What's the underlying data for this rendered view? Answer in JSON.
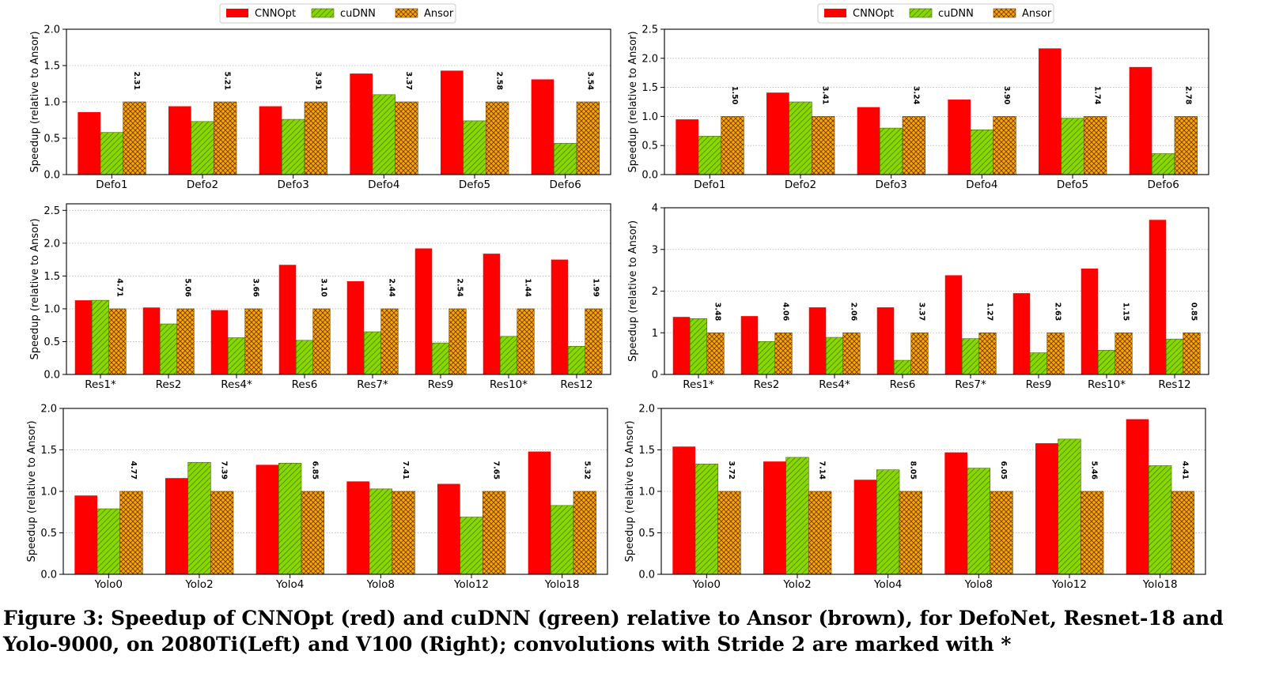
{
  "legend": {
    "items": [
      {
        "label": "CNNOpt",
        "color": "#ff0000",
        "pattern": "solid"
      },
      {
        "label": "cuDNN",
        "color": "#7fd000",
        "pattern": "diagonal-hatch"
      },
      {
        "label": "Ansor",
        "color": "#ffa500",
        "pattern": "cross-hatch"
      }
    ]
  },
  "caption": "Figure 3: Speedup of CNNOpt (red) and cuDNN (green) relative to Ansor (brown), for DefoNet, Resnet-18 and Yolo-9000, on 2080Ti(Left) and V100 (Right); convolutions with Stride 2 are marked with *",
  "chart_data": [
    {
      "type": "bar",
      "panel": "top-left",
      "ylabel": "Speedup (relative to Ansor)",
      "ylim": [
        0,
        2.0
      ],
      "yticks": [
        "0.0",
        "0.5",
        "1.0",
        "1.5",
        "2.0"
      ],
      "categories": [
        "Defo1",
        "Defo2",
        "Defo3",
        "Defo4",
        "Defo5",
        "Defo6"
      ],
      "series": [
        {
          "name": "CNNOpt",
          "values": [
            0.86,
            0.94,
            0.94,
            1.39,
            1.43,
            1.31
          ]
        },
        {
          "name": "cuDNN",
          "values": [
            0.58,
            0.73,
            0.76,
            1.1,
            0.74,
            0.43
          ]
        },
        {
          "name": "Ansor",
          "values": [
            1.0,
            1.0,
            1.0,
            1.0,
            1.0,
            1.0
          ]
        }
      ],
      "annotations": [
        "2.31",
        "5.21",
        "3.91",
        "3.37",
        "2.58",
        "3.54"
      ],
      "grid": "horizontal-dotted"
    },
    {
      "type": "bar",
      "panel": "top-right",
      "ylabel": "Speedup (relative to Ansor)",
      "ylim": [
        0,
        2.5
      ],
      "yticks": [
        "0.0",
        "0.5",
        "1.0",
        "1.5",
        "2.0",
        "2.5"
      ],
      "categories": [
        "Defo1",
        "Defo2",
        "Defo3",
        "Defo4",
        "Defo5",
        "Defo6"
      ],
      "series": [
        {
          "name": "CNNOpt",
          "values": [
            0.95,
            1.41,
            1.16,
            1.29,
            2.17,
            1.85
          ]
        },
        {
          "name": "cuDNN",
          "values": [
            0.66,
            1.25,
            0.8,
            0.77,
            0.97,
            0.36
          ]
        },
        {
          "name": "Ansor",
          "values": [
            1.0,
            1.0,
            1.0,
            1.0,
            1.0,
            1.0
          ]
        }
      ],
      "annotations": [
        "1.50",
        "3.41",
        "3.24",
        "3.90",
        "1.74",
        "2.78"
      ],
      "grid": "horizontal-dotted"
    },
    {
      "type": "bar",
      "panel": "middle-left",
      "ylabel": "Speedup (relative to Ansor)",
      "ylim": [
        0,
        2.6
      ],
      "yticks": [
        "0.0",
        "0.5",
        "1.0",
        "1.5",
        "2.0",
        "2.5"
      ],
      "categories": [
        "Res1*",
        "Res2",
        "Res4*",
        "Res6",
        "Res7*",
        "Res9",
        "Res10*",
        "Res12"
      ],
      "series": [
        {
          "name": "CNNOpt",
          "values": [
            1.13,
            1.02,
            0.98,
            1.67,
            1.42,
            1.92,
            1.84,
            1.75
          ]
        },
        {
          "name": "cuDNN",
          "values": [
            1.13,
            0.77,
            0.56,
            0.52,
            0.65,
            0.48,
            0.58,
            0.43
          ]
        },
        {
          "name": "Ansor",
          "values": [
            1.0,
            1.0,
            1.0,
            1.0,
            1.0,
            1.0,
            1.0,
            1.0
          ]
        }
      ],
      "annotations": [
        "4.71",
        "5.06",
        "3.66",
        "3.10",
        "2.44",
        "2.54",
        "1.44",
        "1.99"
      ],
      "grid": "horizontal-dotted"
    },
    {
      "type": "bar",
      "panel": "middle-right",
      "ylabel": "Speedup (relative to Ansor)",
      "ylim": [
        0,
        4
      ],
      "yticks": [
        "0",
        "1",
        "2",
        "3",
        "4"
      ],
      "categories": [
        "Res1*",
        "Res2",
        "Res4*",
        "Res6",
        "Res7*",
        "Res9",
        "Res10*",
        "Res12"
      ],
      "series": [
        {
          "name": "CNNOpt",
          "values": [
            1.38,
            1.4,
            1.61,
            1.61,
            2.38,
            1.95,
            2.54,
            3.71
          ]
        },
        {
          "name": "cuDNN",
          "values": [
            1.34,
            0.79,
            0.89,
            0.34,
            0.86,
            0.52,
            0.58,
            0.85
          ]
        },
        {
          "name": "Ansor",
          "values": [
            1.0,
            1.0,
            1.0,
            1.0,
            1.0,
            1.0,
            1.0,
            1.0
          ]
        }
      ],
      "annotations": [
        "3.48",
        "4.06",
        "2.06",
        "3.37",
        "1.27",
        "2.63",
        "1.15",
        "0.85"
      ],
      "grid": "horizontal-dotted"
    },
    {
      "type": "bar",
      "panel": "bottom-left",
      "ylabel": "Speedup (relative to Ansor)",
      "ylim": [
        0,
        2.0
      ],
      "yticks": [
        "0.0",
        "0.5",
        "1.0",
        "1.5",
        "2.0"
      ],
      "categories": [
        "Yolo0",
        "Yolo2",
        "Yolo4",
        "Yolo8",
        "Yolo12",
        "Yolo18"
      ],
      "series": [
        {
          "name": "CNNOpt",
          "values": [
            0.95,
            1.16,
            1.32,
            1.12,
            1.09,
            1.48
          ]
        },
        {
          "name": "cuDNN",
          "values": [
            0.79,
            1.35,
            1.34,
            1.03,
            0.69,
            0.83
          ]
        },
        {
          "name": "Ansor",
          "values": [
            1.0,
            1.0,
            1.0,
            1.0,
            1.0,
            1.0
          ]
        }
      ],
      "annotations": [
        "4.77",
        "7.39",
        "6.85",
        "7.41",
        "7.65",
        "5.32"
      ],
      "grid": "horizontal-dotted"
    },
    {
      "type": "bar",
      "panel": "bottom-right",
      "ylabel": "Speedup (relative to Ansor)",
      "ylim": [
        0,
        2.0
      ],
      "yticks": [
        "0.0",
        "0.5",
        "1.0",
        "1.5",
        "2.0"
      ],
      "categories": [
        "Yolo0",
        "Yolo2",
        "Yolo4",
        "Yolo8",
        "Yolo12",
        "Yolo18"
      ],
      "series": [
        {
          "name": "CNNOpt",
          "values": [
            1.54,
            1.36,
            1.14,
            1.47,
            1.58,
            1.87
          ]
        },
        {
          "name": "cuDNN",
          "values": [
            1.33,
            1.41,
            1.26,
            1.28,
            1.63,
            1.31
          ]
        },
        {
          "name": "Ansor",
          "values": [
            1.0,
            1.0,
            1.0,
            1.0,
            1.0,
            1.0
          ]
        }
      ],
      "annotations": [
        "3.72",
        "7.14",
        "8.05",
        "6.05",
        "5.46",
        "4.41"
      ],
      "grid": "horizontal-dotted"
    }
  ]
}
